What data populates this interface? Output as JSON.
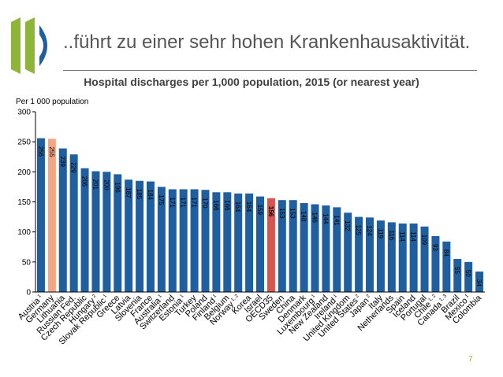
{
  "slide": {
    "title": "..führt zu einer sehr hohen Krankenhausaktivität.",
    "page_number": "7"
  },
  "colors": {
    "default_bar": "#1f5fa0",
    "highlight_bar": "#f4a582",
    "average_bar": "#d9534f",
    "logo_green": "#8fb43a",
    "logo_blue": "#1f5fa0"
  },
  "chart_data": {
    "type": "bar",
    "title": "Hospital discharges per 1,000 population, 2015 (or nearest year)",
    "ylabel": "Per 1 000 population",
    "xlabel": "",
    "ylim": [
      0,
      300
    ],
    "yticks": [
      "0",
      "50",
      "100",
      "150",
      "200",
      "250",
      "300"
    ],
    "grid": false,
    "categories": [
      {
        "name": "Austria",
        "note": "1"
      },
      {
        "name": "Germany",
        "note": ""
      },
      {
        "name": "Lithuania",
        "note": ""
      },
      {
        "name": "Russian Fed.",
        "note": ""
      },
      {
        "name": "Czech Republic",
        "note": ""
      },
      {
        "name": "Hungary",
        "note": "2"
      },
      {
        "name": "Slovak Republic",
        "note": "1"
      },
      {
        "name": "Greece",
        "note": ""
      },
      {
        "name": "Latvia",
        "note": ""
      },
      {
        "name": "Slovenia",
        "note": ""
      },
      {
        "name": "France",
        "note": ""
      },
      {
        "name": "Australia",
        "note": "1"
      },
      {
        "name": "Switzerland",
        "note": ""
      },
      {
        "name": "Estonia",
        "note": "1"
      },
      {
        "name": "Turkey",
        "note": ""
      },
      {
        "name": "Poland",
        "note": ""
      },
      {
        "name": "Finland",
        "note": "1"
      },
      {
        "name": "Belgium",
        "note": ""
      },
      {
        "name": "Norway",
        "note": "1, 2"
      },
      {
        "name": "Korea",
        "note": ""
      },
      {
        "name": "Israel",
        "note": ""
      },
      {
        "name": "OECD35",
        "note": ""
      },
      {
        "name": "Sweden",
        "note": ""
      },
      {
        "name": "China",
        "note": ""
      },
      {
        "name": "Denmark",
        "note": ""
      },
      {
        "name": "Luxembourg",
        "note": "1"
      },
      {
        "name": "New Zealand",
        "note": ""
      },
      {
        "name": "Ireland",
        "note": "1"
      },
      {
        "name": "United Kingdom",
        "note": ""
      },
      {
        "name": "United States",
        "note": "2"
      },
      {
        "name": "Japan",
        "note": "2"
      },
      {
        "name": "Italy",
        "note": ""
      },
      {
        "name": "Netherlands",
        "note": ""
      },
      {
        "name": "Spain",
        "note": ""
      },
      {
        "name": "Iceland",
        "note": ""
      },
      {
        "name": "Portugal",
        "note": ""
      },
      {
        "name": "Chile",
        "note": "1, 2"
      },
      {
        "name": "Canada",
        "note": "1, 3"
      },
      {
        "name": "Brazil",
        "note": ""
      },
      {
        "name": "Mexico",
        "note": "1"
      },
      {
        "name": "Colombia",
        "note": ""
      }
    ],
    "values": [
      256,
      255,
      239,
      229,
      206,
      201,
      200,
      196,
      187,
      185,
      184,
      175,
      171,
      171,
      171,
      170,
      166,
      166,
      164,
      164,
      159,
      156,
      153,
      153,
      148,
      146,
      144,
      141,
      132,
      125,
      124,
      119,
      116,
      114,
      114,
      109,
      93,
      84,
      55,
      50,
      34
    ],
    "value_labels": [
      "256",
      "255",
      "239",
      "229",
      "206",
      "201",
      "200",
      "196",
      "187",
      "185",
      "184",
      "175",
      "171",
      "171",
      "171",
      "170",
      "166",
      "166",
      "164",
      "164",
      "159",
      "156",
      "153",
      "153",
      "148",
      "146",
      "144",
      "141",
      "132",
      "125",
      "124",
      "119",
      "116",
      "114",
      "114",
      "109",
      "93",
      "84",
      "55",
      "50",
      "34"
    ],
    "highlight_index": 1,
    "average_index": 21
  }
}
